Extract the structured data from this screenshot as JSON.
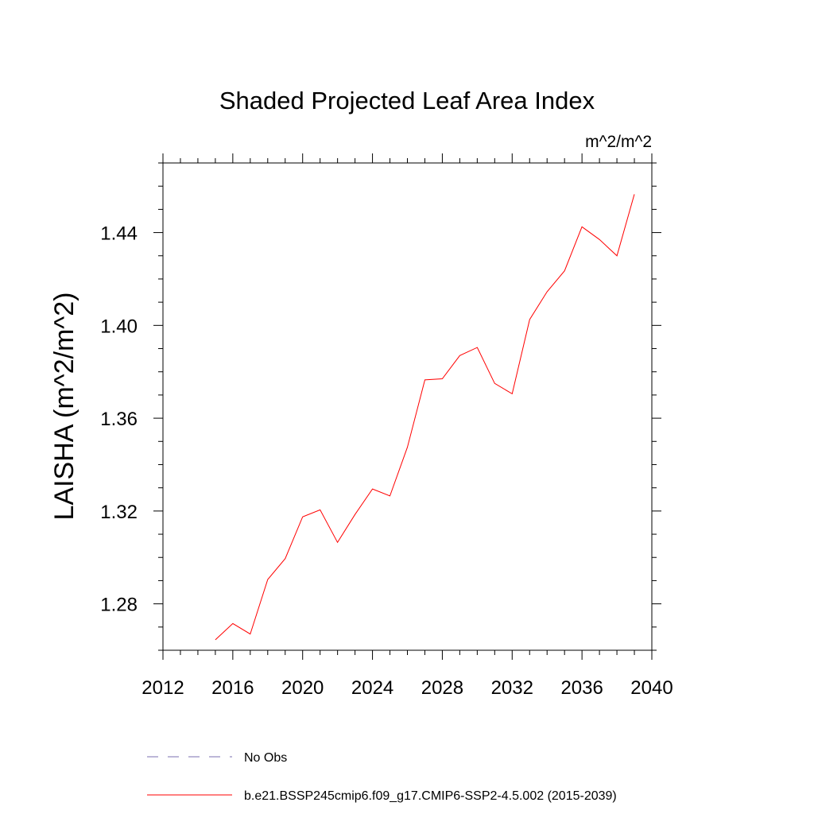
{
  "chart_data": {
    "type": "line",
    "title": "Shaded Projected Leaf Area Index",
    "units_label": "m^2/m^2",
    "ylabel": "LAISHA  (m^2/m^2)",
    "xlabel": "",
    "xlim": [
      2012,
      2040
    ],
    "ylim": [
      1.26,
      1.47
    ],
    "x_ticks": [
      2012,
      2016,
      2020,
      2024,
      2028,
      2032,
      2036,
      2040
    ],
    "x_tick_labels": [
      "2012",
      "2016",
      "2020",
      "2024",
      "2028",
      "2032",
      "2036",
      "2040"
    ],
    "x_minor_step": 1,
    "y_ticks": [
      1.28,
      1.32,
      1.36,
      1.4,
      1.44
    ],
    "y_tick_labels": [
      "1.28",
      "1.32",
      "1.36",
      "1.40",
      "1.44"
    ],
    "y_minor_step": 0.01,
    "grid": false,
    "legend_position": "bottom",
    "series": [
      {
        "name": "b.e21.BSSP245cmip6.f09_g17.CMIP6-SSP2-4.5.002 (2015-2039)",
        "color": "#ff0000",
        "dash": "solid",
        "x": [
          2015,
          2016,
          2017,
          2018,
          2019,
          2020,
          2021,
          2022,
          2023,
          2024,
          2025,
          2026,
          2027,
          2028,
          2029,
          2030,
          2031,
          2032,
          2033,
          2034,
          2035,
          2036,
          2037,
          2038,
          2039
        ],
        "values": [
          1.2645,
          1.2715,
          1.267,
          1.2905,
          1.2995,
          1.3175,
          1.3205,
          1.3065,
          1.3185,
          1.3295,
          1.3265,
          1.3475,
          1.3765,
          1.377,
          1.387,
          1.3905,
          1.375,
          1.3705,
          1.4025,
          1.4145,
          1.4235,
          1.4425,
          1.437,
          1.43,
          1.4565
        ]
      }
    ],
    "legend": [
      {
        "label": "No Obs",
        "color": "#7b6fb0",
        "dash": "dashed"
      },
      {
        "label": "b.e21.BSSP245cmip6.f09_g17.CMIP6-SSP2-4.5.002 (2015-2039)",
        "color": "#ff0000",
        "dash": "solid"
      }
    ]
  }
}
